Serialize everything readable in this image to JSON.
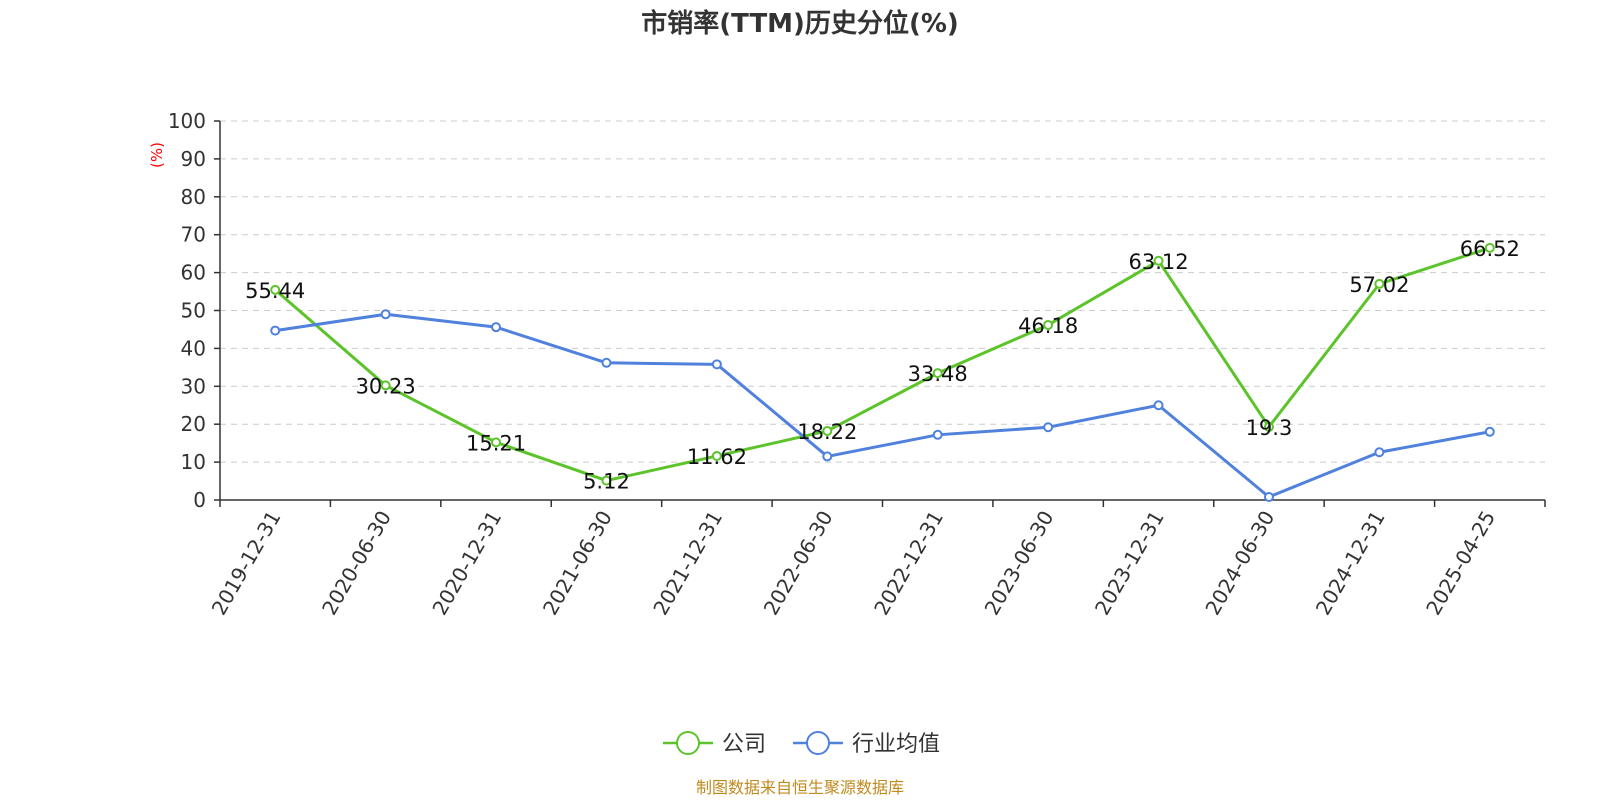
{
  "chart_data": {
    "type": "line",
    "title": "市销率(TTM)历史分位(%)",
    "ylabel": "(%)",
    "ylim": [
      0,
      100
    ],
    "yticks": [
      0,
      10,
      20,
      30,
      40,
      50,
      60,
      70,
      80,
      90,
      100
    ],
    "grid": true,
    "legend_position": "bottom-center",
    "categories": [
      "2019-12-31",
      "2020-06-30",
      "2020-12-31",
      "2021-06-30",
      "2021-12-31",
      "2022-06-30",
      "2022-12-31",
      "2023-06-30",
      "2023-12-31",
      "2024-06-30",
      "2024-12-31",
      "2025-04-25"
    ],
    "series": [
      {
        "name": "公司",
        "color": "#5cc42a",
        "values": [
          55.44,
          30.23,
          15.21,
          5.12,
          11.62,
          18.22,
          33.48,
          46.18,
          63.12,
          19.3,
          57.02,
          66.52
        ],
        "labels": [
          "55.44",
          "30.23",
          "15.21",
          "5.12",
          "11.62",
          "18.22",
          "33.48",
          "46.18",
          "63.12",
          "19.3",
          "57.02",
          "66.52"
        ]
      },
      {
        "name": "行业均值",
        "color": "#4f81dd",
        "values": [
          44.7,
          49.0,
          45.6,
          36.2,
          35.8,
          11.5,
          17.2,
          19.2,
          25.0,
          0.8,
          12.6,
          18.0
        ]
      }
    ],
    "source": "制图数据来自恒生聚源数据库"
  }
}
